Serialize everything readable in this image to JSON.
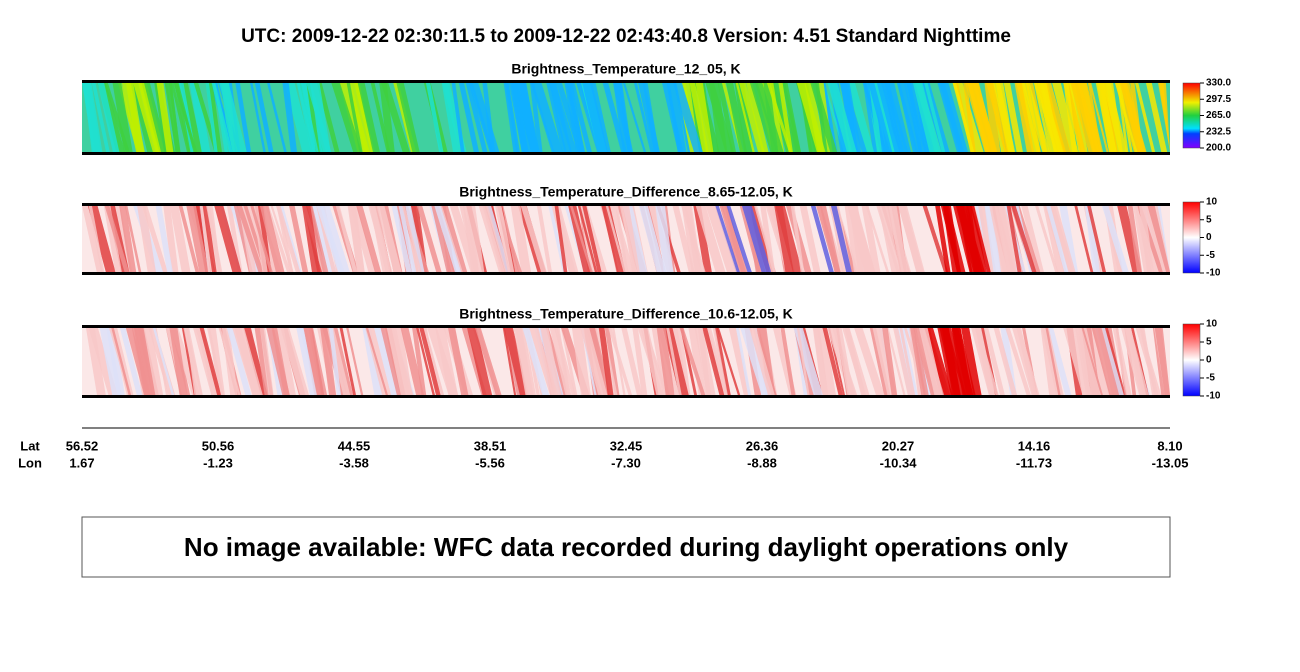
{
  "header": {
    "title": "UTC:  2009-12-22   02:30:11.5  to  2009-12-22   02:43:40.8    Version: 4.51  Standard Nighttime"
  },
  "panels": [
    {
      "title": "Brightness_Temperature_12_05, K",
      "clim": [
        200,
        330
      ],
      "cticks": [
        {
          "value": 330,
          "label": "330.0"
        },
        {
          "value": 297.5,
          "label": "297.5"
        },
        {
          "value": 265,
          "label": "265.0"
        },
        {
          "value": 232.5,
          "label": "232.5"
        },
        {
          "value": 200,
          "label": "200.0"
        }
      ]
    },
    {
      "title": "Brightness_Temperature_Difference_8.65-12.05, K",
      "clim": [
        -10,
        10
      ],
      "cticks": [
        10,
        5,
        0,
        -5,
        -10
      ]
    },
    {
      "title": "Brightness_Temperature_Difference_10.6-12.05, K",
      "clim": [
        -10,
        10
      ],
      "cticks": [
        10,
        5,
        0,
        -5,
        -10
      ]
    }
  ],
  "location": {
    "lat_label": "Lat",
    "lon_label": "Lon",
    "lat": [
      "56.52",
      "50.56",
      "44.55",
      "38.51",
      "32.45",
      "26.36",
      "20.27",
      "14.16",
      "8.10"
    ],
    "lon": [
      "1.67",
      "-1.23",
      "-3.58",
      "-5.56",
      "-7.30",
      "-8.88",
      "-10.34",
      "-11.73",
      "-13.05"
    ]
  },
  "message": "No image available: WFC data recorded during daylight operations only"
}
